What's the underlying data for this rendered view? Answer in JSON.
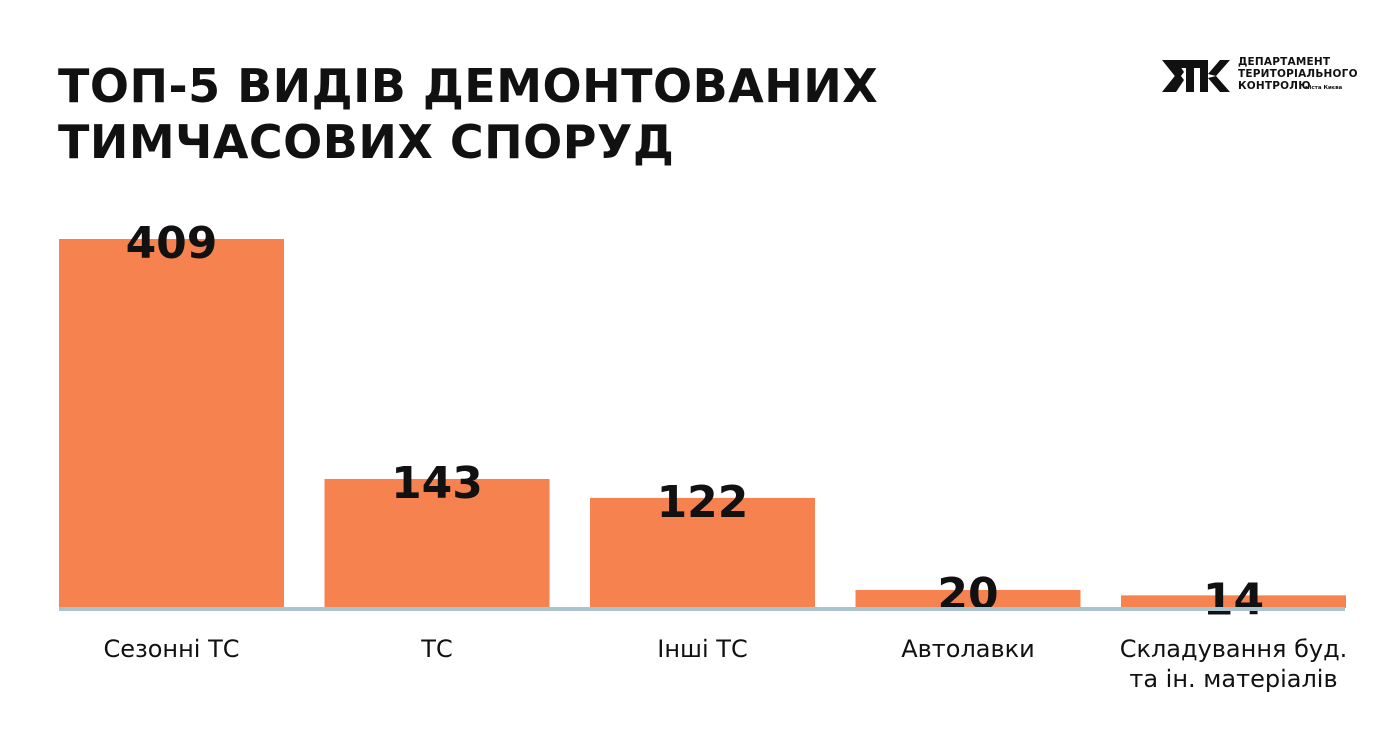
{
  "title_lines": [
    "ТОП-5 ВИДІВ ДЕМОНТОВАНИХ",
    "ТИМЧАСОВИХ СПОРУД"
  ],
  "logo": {
    "lines": [
      "ДЕПАРТАМЕНТ",
      "ТЕРИТОРІАЛЬНОГО",
      "КОНТРОЛЮ"
    ],
    "small": "міста Києва",
    "icon": "dtk-monogram-icon"
  },
  "colors": {
    "bar": "#f6834f",
    "baseline": "#a9c4cf",
    "text": "#111111"
  },
  "chart_data": {
    "type": "bar",
    "categories": [
      [
        "Сезонні ТС"
      ],
      [
        "ТС"
      ],
      [
        "Інші ТС"
      ],
      [
        "Автолавки"
      ],
      [
        "Складування буд.",
        "та ін. матеріалів"
      ]
    ],
    "values": [
      409,
      143,
      122,
      20,
      14
    ],
    "data_labels": [
      "409",
      "143",
      "122",
      "20",
      "14"
    ],
    "ylim": [
      0,
      409
    ],
    "grid": false,
    "legend": "none"
  }
}
